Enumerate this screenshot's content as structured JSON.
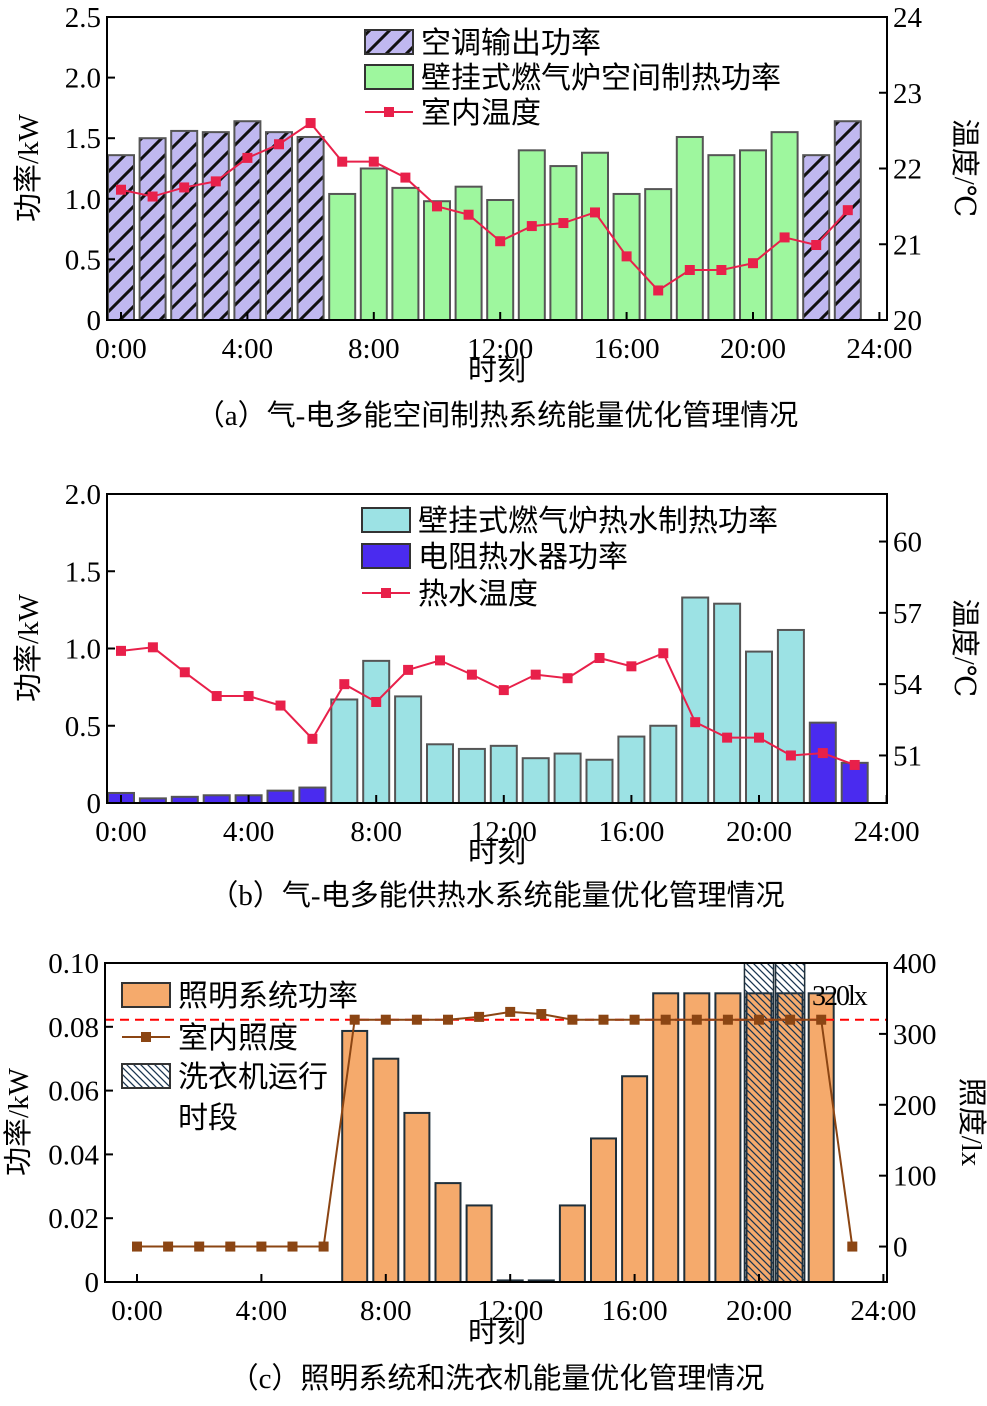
{
  "chart_data": [
    {
      "type": "bar+line",
      "caption": "（a）气-电多能空间制热系统能量优化管理情况",
      "xlabel": "时刻",
      "ylabel": "功率/kW",
      "y2label": "温度/℃",
      "xticks": [
        "0:00",
        "4:00",
        "8:00",
        "12:00",
        "16:00",
        "20:00",
        "24:00"
      ],
      "yticks": [
        "0",
        "0.5",
        "1.0",
        "1.5",
        "2.0",
        "2.5"
      ],
      "y2ticks": [
        "20",
        "21",
        "22",
        "23",
        "24"
      ],
      "ylim": [
        0,
        2.5
      ],
      "y2lim": [
        20,
        24
      ],
      "hours": [
        0,
        1,
        2,
        3,
        4,
        5,
        6,
        7,
        8,
        9,
        10,
        11,
        12,
        13,
        14,
        15,
        16,
        17,
        18,
        19,
        20,
        21,
        22,
        23
      ],
      "series": [
        {
          "name": "空调输出功率",
          "kind": "bar",
          "style": "hatch",
          "color": "#c0b8f0",
          "values": [
            1.36,
            1.5,
            1.56,
            1.55,
            1.64,
            1.55,
            1.51,
            null,
            null,
            null,
            null,
            null,
            null,
            null,
            null,
            null,
            null,
            null,
            null,
            null,
            null,
            null,
            1.36,
            1.64
          ]
        },
        {
          "name": "壁挂式燃气炉空间制热功率",
          "kind": "bar",
          "style": "solid",
          "color": "#9ef79e",
          "values": [
            null,
            null,
            null,
            null,
            null,
            null,
            null,
            1.04,
            1.25,
            1.09,
            0.98,
            1.1,
            0.99,
            1.4,
            1.27,
            1.38,
            1.04,
            1.08,
            1.51,
            1.36,
            1.4,
            1.55,
            null,
            null
          ]
        },
        {
          "name": "室内温度",
          "kind": "line",
          "axis": "right",
          "color": "#e8204a",
          "values": [
            21.72,
            21.63,
            21.75,
            21.83,
            22.14,
            22.32,
            22.6,
            22.09,
            22.09,
            21.88,
            21.5,
            21.39,
            21.04,
            21.24,
            21.28,
            21.42,
            20.84,
            20.39,
            20.66,
            20.66,
            20.75,
            21.09,
            20.99,
            21.45
          ]
        }
      ],
      "grid": false,
      "legend": "top-center"
    },
    {
      "type": "bar+line",
      "caption": "（b）气-电多能供热水系统能量优化管理情况",
      "xlabel": "时刻",
      "ylabel": "功率/kW",
      "y2label": "温度/℃",
      "xticks": [
        "0:00",
        "4:00",
        "8:00",
        "12:00",
        "16:00",
        "20:00",
        "24:00"
      ],
      "yticks": [
        "0",
        "0.5",
        "1.0",
        "1.5",
        "2.0"
      ],
      "y2ticks": [
        "51",
        "54",
        "57",
        "60"
      ],
      "ylim": [
        0,
        2.0
      ],
      "y2lim": [
        49,
        62
      ],
      "hours": [
        0,
        1,
        2,
        3,
        4,
        5,
        6,
        7,
        8,
        9,
        10,
        11,
        12,
        13,
        14,
        15,
        16,
        17,
        18,
        19,
        20,
        21,
        22,
        23
      ],
      "series": [
        {
          "name": "壁挂式燃气炉热水制热功率",
          "kind": "bar",
          "style": "solid",
          "color": "#9ce2e4",
          "values": [
            null,
            null,
            null,
            null,
            null,
            null,
            null,
            0.67,
            0.92,
            0.69,
            0.38,
            0.35,
            0.37,
            0.29,
            0.32,
            0.28,
            0.43,
            0.5,
            1.33,
            1.29,
            0.98,
            1.12,
            null,
            null
          ]
        },
        {
          "name": "电阻热水器功率",
          "kind": "bar",
          "style": "solid",
          "color": "#4a2bef",
          "values": [
            0.065,
            0.03,
            0.04,
            0.05,
            0.05,
            0.08,
            0.1,
            null,
            null,
            null,
            null,
            null,
            null,
            null,
            null,
            null,
            null,
            null,
            null,
            null,
            null,
            null,
            0.52,
            0.26
          ]
        },
        {
          "name": "热水温度",
          "kind": "line",
          "axis": "right",
          "color": "#e8204a",
          "values": [
            55.4,
            55.55,
            54.5,
            53.5,
            53.5,
            53.1,
            51.7,
            54.0,
            53.25,
            54.6,
            55.0,
            54.4,
            53.75,
            54.4,
            54.25,
            55.1,
            54.75,
            55.3,
            52.4,
            51.75,
            51.75,
            51.0,
            51.1,
            50.6
          ]
        }
      ],
      "grid": false,
      "legend": "top-center"
    },
    {
      "type": "bar+line",
      "caption": "（c）照明系统和洗衣机能量优化管理情况",
      "xlabel": "时刻",
      "ylabel": "功率/kW",
      "y2label": "照度/lx",
      "xticks": [
        "0:00",
        "4:00",
        "8:00",
        "12:00",
        "16:00",
        "20:00",
        "24:00"
      ],
      "yticks": [
        "0",
        "0.02",
        "0.04",
        "0.06",
        "0.08",
        "0.10"
      ],
      "y2ticks": [
        "0",
        "100",
        "200",
        "300",
        "400"
      ],
      "ylim": [
        0,
        0.1
      ],
      "y2lim": [
        -50,
        400
      ],
      "hours": [
        0,
        1,
        2,
        3,
        4,
        5,
        6,
        7,
        8,
        9,
        10,
        11,
        12,
        13,
        14,
        15,
        16,
        17,
        18,
        19,
        20,
        21,
        22,
        23
      ],
      "series": [
        {
          "name": "照明系统功率",
          "kind": "bar",
          "style": "solid",
          "color": "#f5aa6c",
          "values": [
            0,
            0,
            0,
            0,
            0,
            0,
            0,
            0.0787,
            0.07,
            0.053,
            0.031,
            0.024,
            0.0005,
            0.0005,
            0.024,
            0.045,
            0.0645,
            0.0905,
            0.0905,
            0.0905,
            0.0905,
            0.0905,
            0.0905,
            0
          ]
        },
        {
          "name": "室内照度",
          "kind": "line",
          "axis": "right",
          "color": "#8b4513",
          "values": [
            0,
            0,
            0,
            0,
            0,
            0,
            0,
            320,
            320,
            320,
            320,
            324,
            331,
            328,
            320,
            320,
            320,
            320,
            320,
            320,
            320,
            320,
            320,
            0
          ]
        },
        {
          "name": "洗衣机运行",
          "name_line2": "时段",
          "kind": "span",
          "style": "hatch",
          "color": "#ffffff",
          "hours_on": [
            20,
            21
          ]
        }
      ],
      "reference_line": {
        "value": 320,
        "label": "320lx",
        "color": "#ff0000",
        "style": "dashed"
      },
      "grid": false,
      "legend": "top-left"
    }
  ]
}
